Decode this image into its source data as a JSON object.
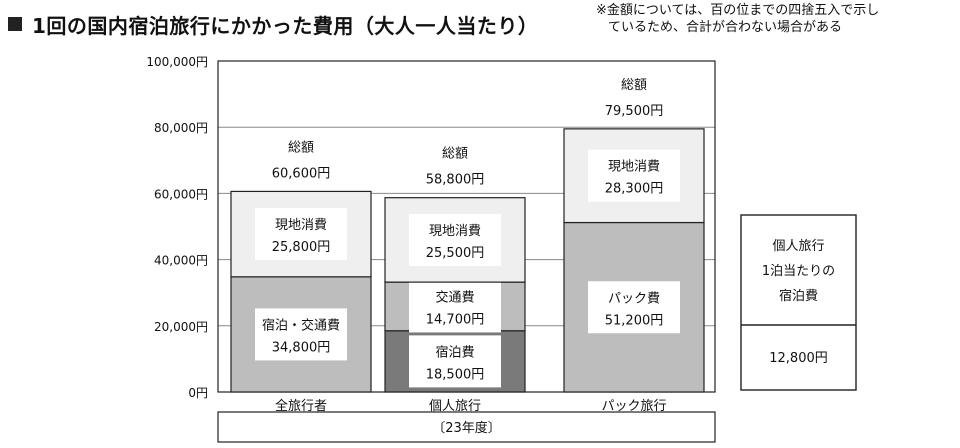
{
  "header": {
    "title": "1回の国内宿泊旅行にかかった費用（大人一人当たり）",
    "note_line1": "※金額については、百の位までの四捨五入で示し",
    "note_line2": "ているため、合計が合わない場合がある"
  },
  "chart_data": {
    "type": "bar",
    "stacked": true,
    "categories": [
      "全旅行者",
      "個人旅行",
      "パック旅行"
    ],
    "ylim": [
      0,
      100000
    ],
    "yticks": [
      0,
      20000,
      40000,
      60000,
      80000,
      100000
    ],
    "ytick_labels": [
      "0円",
      "20,000円",
      "40,000円",
      "60,000円",
      "80,000円",
      "100,000円"
    ],
    "xlabel_box": "〔23年度〕",
    "total_label": "総額",
    "bars": [
      {
        "category": "全旅行者",
        "total": 60600,
        "total_text": "60,600円",
        "segments": [
          {
            "name": "宿泊・交通費",
            "value": 34800,
            "value_text": "34,800円",
            "color": "#bdbdbd"
          },
          {
            "name": "現地消費",
            "value": 25800,
            "value_text": "25,800円",
            "color": "#efefef"
          }
        ]
      },
      {
        "category": "個人旅行",
        "total": 58800,
        "total_text": "58,800円",
        "segments": [
          {
            "name": "宿泊費",
            "value": 18500,
            "value_text": "18,500円",
            "color": "#7a7a7a"
          },
          {
            "name": "交通費",
            "value": 14700,
            "value_text": "14,700円",
            "color": "#bdbdbd"
          },
          {
            "name": "現地消費",
            "value": 25500,
            "value_text": "25,500円",
            "color": "#efefef"
          }
        ]
      },
      {
        "category": "パック旅行",
        "total": 79500,
        "total_text": "79,500円",
        "segments": [
          {
            "name": "パック費",
            "value": 51200,
            "value_text": "51,200円",
            "color": "#bdbdbd"
          },
          {
            "name": "現地消費",
            "value": 28300,
            "value_text": "28,300円",
            "color": "#efefef"
          }
        ]
      }
    ],
    "side_box": {
      "line1": "個人旅行",
      "line2": "1泊当たりの",
      "line3": "宿泊費",
      "value_text": "12,800円"
    }
  }
}
